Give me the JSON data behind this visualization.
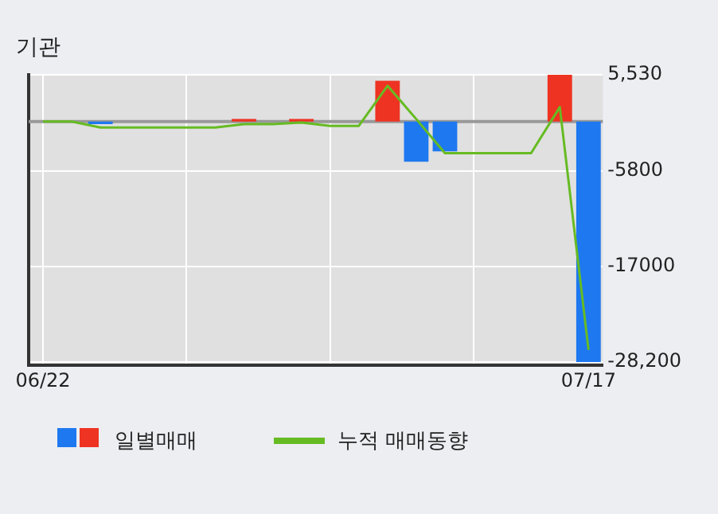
{
  "chart_data": {
    "type": "bar",
    "title": "기관",
    "categories": [
      "06/22",
      null,
      null,
      null,
      null,
      null,
      null,
      null,
      null,
      null,
      null,
      null,
      null,
      null,
      null,
      null,
      null,
      null,
      null,
      "07/17"
    ],
    "series": [
      {
        "name": "일별매매",
        "colors": [
          "#1e78f0",
          "#1e78f0",
          "#1e78f0",
          "#1e78f0",
          "#1e78f0",
          "#1e78f0",
          "#1e78f0",
          "#ee3322",
          "#1e78f0",
          "#ee3322",
          "#1e78f0",
          "#1e78f0",
          "#ee3322",
          "#1e78f0",
          "#1e78f0",
          "#1e78f0",
          "#1e78f0",
          "#1e78f0",
          "#ee3322",
          "#1e78f0"
        ],
        "values": [
          0,
          0,
          -300,
          0,
          0,
          0,
          0,
          300,
          0,
          300,
          0,
          0,
          4800,
          -4700,
          -3500,
          0,
          0,
          0,
          5500,
          -28200
        ]
      },
      {
        "name": "누적 매매동향",
        "type": "line",
        "color": "#66bb22",
        "values": [
          0,
          0,
          -700,
          -700,
          -700,
          -700,
          -700,
          -300,
          -300,
          -100,
          -500,
          -500,
          4200,
          300,
          -3700,
          -3700,
          -3700,
          -3700,
          1700,
          -26800
        ]
      }
    ],
    "ylim": [
      -28600,
      5530
    ],
    "yticks": [
      {
        "value": 5530,
        "label": "5,530"
      },
      -5800,
      -17000,
      {
        "value": -28200,
        "label": "-28,200"
      }
    ],
    "ref_lines": [
      {
        "axis": "y",
        "value": 0,
        "color": "#999999"
      }
    ],
    "grid": true,
    "legend": "bottom",
    "marker": "none"
  }
}
